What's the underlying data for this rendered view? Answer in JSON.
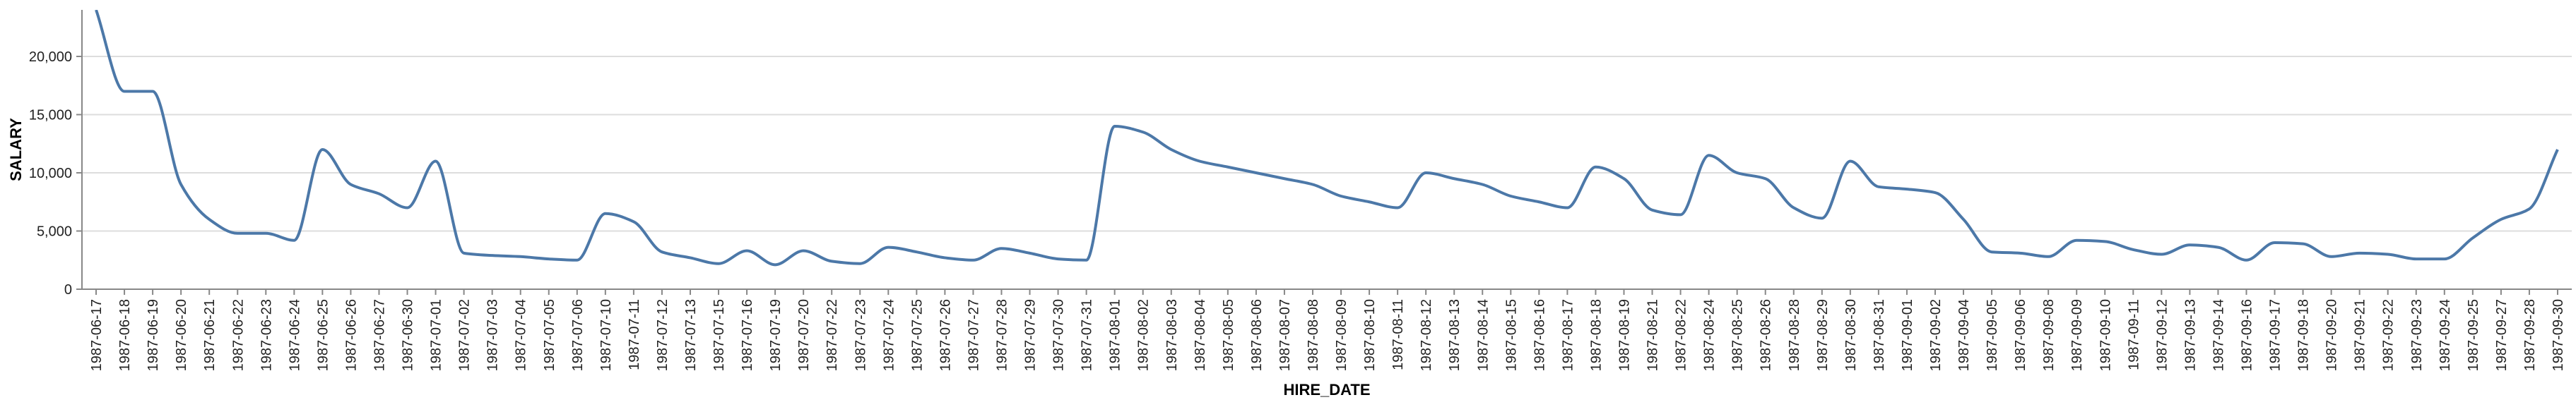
{
  "chart_data": {
    "type": "line",
    "xlabel": "HIRE_DATE",
    "ylabel": "SALARY",
    "ylim": [
      0,
      24000
    ],
    "yticks": [
      0,
      5000,
      10000,
      15000,
      20000
    ],
    "ytick_labels": [
      "0",
      "5,000",
      "10,000",
      "15,000",
      "20,000"
    ],
    "grid": true,
    "interpolation": "monotone",
    "colors": {
      "line": "#4c78a8",
      "grid": "#dddddd",
      "axis": "#888888"
    },
    "x": [
      "1987-06-17",
      "1987-06-18",
      "1987-06-19",
      "1987-06-20",
      "1987-06-21",
      "1987-06-22",
      "1987-06-23",
      "1987-06-24",
      "1987-06-25",
      "1987-06-26",
      "1987-06-27",
      "1987-06-30",
      "1987-07-01",
      "1987-07-02",
      "1987-07-03",
      "1987-07-04",
      "1987-07-05",
      "1987-07-06",
      "1987-07-10",
      "1987-07-11",
      "1987-07-12",
      "1987-07-13",
      "1987-07-15",
      "1987-07-16",
      "1987-07-19",
      "1987-07-20",
      "1987-07-22",
      "1987-07-23",
      "1987-07-24",
      "1987-07-25",
      "1987-07-26",
      "1987-07-27",
      "1987-07-28",
      "1987-07-29",
      "1987-07-30",
      "1987-07-31",
      "1987-08-01",
      "1987-08-02",
      "1987-08-03",
      "1987-08-04",
      "1987-08-05",
      "1987-08-06",
      "1987-08-07",
      "1987-08-08",
      "1987-08-09",
      "1987-08-10",
      "1987-08-11",
      "1987-08-12",
      "1987-08-13",
      "1987-08-14",
      "1987-08-15",
      "1987-08-16",
      "1987-08-17",
      "1987-08-18",
      "1987-08-19",
      "1987-08-21",
      "1987-08-22",
      "1987-08-24",
      "1987-08-25",
      "1987-08-26",
      "1987-08-28",
      "1987-08-29",
      "1987-08-30",
      "1987-08-31",
      "1987-09-01",
      "1987-09-02",
      "1987-09-04",
      "1987-09-05",
      "1987-09-06",
      "1987-09-08",
      "1987-09-09",
      "1987-09-10",
      "1987-09-11",
      "1987-09-12",
      "1987-09-13",
      "1987-09-14",
      "1987-09-16",
      "1987-09-17",
      "1987-09-18",
      "1987-09-20",
      "1987-09-21",
      "1987-09-22",
      "1987-09-23",
      "1987-09-24",
      "1987-09-25",
      "1987-09-27",
      "1987-09-28",
      "1987-09-30"
    ],
    "values": [
      24000,
      17000,
      17000,
      9000,
      6000,
      4800,
      4800,
      4200,
      12000,
      9000,
      8200,
      7000,
      11000,
      3100,
      2900,
      2800,
      2600,
      2500,
      6500,
      5800,
      3200,
      2700,
      2200,
      3300,
      2100,
      3300,
      2400,
      2200,
      3600,
      3200,
      2700,
      2500,
      3500,
      3100,
      2600,
      2500,
      14000,
      13500,
      12000,
      11000,
      10500,
      10000,
      9500,
      9000,
      8000,
      7500,
      7000,
      10000,
      9500,
      9000,
      8000,
      7500,
      7000,
      10500,
      9500,
      6800,
      6400,
      11500,
      10000,
      9500,
      7000,
      6100,
      11000,
      8800,
      8600,
      8300,
      6000,
      3200,
      3100,
      2800,
      4200,
      4100,
      3400,
      3000,
      3800,
      3600,
      2500,
      4000,
      3900,
      2800,
      3100,
      3000,
      2600,
      2600,
      4400,
      6000,
      6900,
      12000
    ]
  }
}
